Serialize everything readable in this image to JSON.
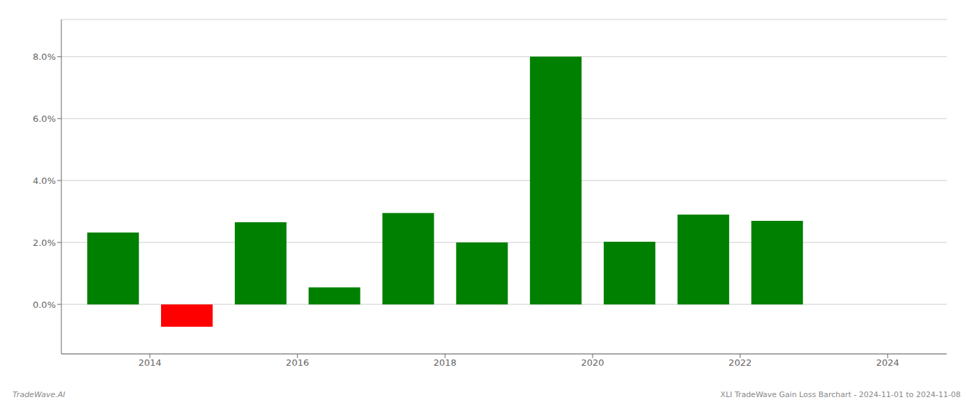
{
  "chart_data": {
    "type": "bar",
    "x": [
      2013.5,
      2014.5,
      2015.5,
      2016.5,
      2017.5,
      2018.5,
      2019.5,
      2020.5,
      2021.5,
      2022.5
    ],
    "values": [
      0.0232,
      -0.0072,
      0.0265,
      0.0055,
      0.0295,
      0.02,
      0.08,
      0.0202,
      0.029,
      0.027
    ],
    "colors": [
      "#008000",
      "#ff0000",
      "#008000",
      "#008000",
      "#008000",
      "#008000",
      "#008000",
      "#008000",
      "#008000",
      "#008000"
    ],
    "xlim": [
      2012.8,
      2024.8
    ],
    "xticks": [
      2014,
      2016,
      2018,
      2020,
      2022,
      2024
    ],
    "ylim": [
      -0.016,
      0.092
    ],
    "yticks": [
      {
        "value": 0.0,
        "label": "0.0%"
      },
      {
        "value": 0.02,
        "label": "2.0%"
      },
      {
        "value": 0.04,
        "label": "4.0%"
      },
      {
        "value": 0.06,
        "label": "6.0%"
      },
      {
        "value": 0.08,
        "label": "8.0%"
      }
    ],
    "grid": true,
    "annotations": [
      "TradeWave.AI",
      "XLI TradeWave Gain Loss Barchart - 2024-11-01 to 2024-11-08"
    ]
  }
}
